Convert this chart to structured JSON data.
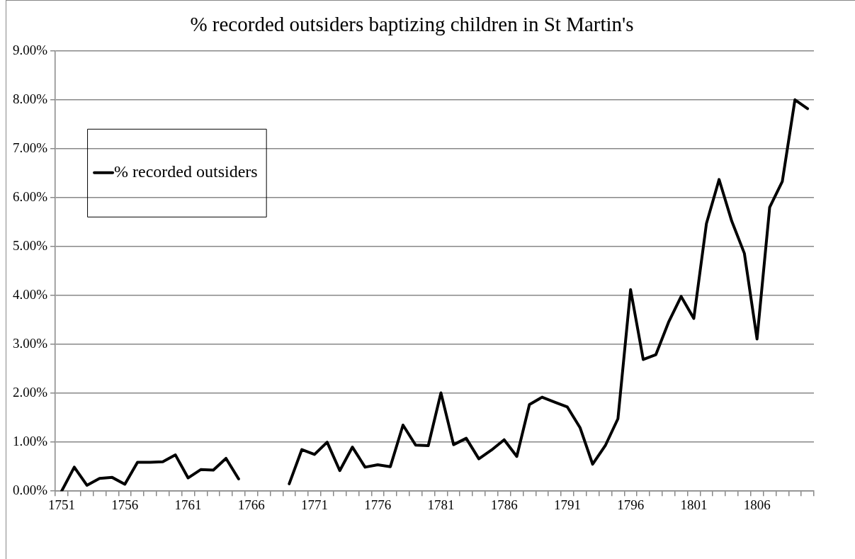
{
  "chart_data": {
    "type": "line",
    "title": "% recorded outsiders baptizing children in St Martin's",
    "categories": [
      "1751",
      null,
      null,
      null,
      null,
      "1756",
      null,
      null,
      null,
      null,
      "1761",
      null,
      null,
      null,
      null,
      "1766",
      null,
      null,
      null,
      null,
      "1771",
      null,
      null,
      null,
      null,
      "1776",
      null,
      null,
      null,
      null,
      "1781",
      null,
      null,
      null,
      null,
      "1786",
      null,
      null,
      null,
      null,
      "1791",
      null,
      null,
      null,
      null,
      "1796",
      null,
      null,
      null,
      null,
      "1801",
      null,
      null,
      null,
      null,
      "1806",
      null,
      null,
      null,
      null
    ],
    "series": [
      {
        "name": "% recorded outsiders",
        "color": "#000000",
        "values": [
          0.0,
          0.49,
          0.12,
          0.26,
          0.28,
          0.14,
          0.59,
          0.59,
          0.6,
          0.74,
          0.27,
          0.44,
          0.43,
          0.67,
          0.25,
          null,
          null,
          null,
          0.15,
          0.85,
          0.75,
          1.0,
          0.42,
          0.9,
          0.49,
          0.54,
          0.5,
          1.35,
          0.94,
          0.93,
          2.01,
          0.95,
          1.08,
          0.66,
          0.84,
          1.05,
          0.71,
          1.77,
          1.92,
          1.82,
          1.72,
          1.3,
          0.55,
          0.93,
          1.48,
          4.12,
          2.69,
          2.79,
          3.45,
          3.98,
          3.53,
          5.47,
          6.37,
          5.52,
          4.86,
          3.11,
          5.8,
          6.33,
          8.0,
          7.82
        ]
      }
    ],
    "ylim": [
      0,
      9
    ],
    "yticks": [
      {
        "value": 0,
        "label": "0.00%"
      },
      {
        "value": 1,
        "label": "1.00%"
      },
      {
        "value": 2,
        "label": "2.00%"
      },
      {
        "value": 3,
        "label": "3.00%"
      },
      {
        "value": 4,
        "label": "4.00%"
      },
      {
        "value": 5,
        "label": "5.00%"
      },
      {
        "value": 6,
        "label": "6.00%"
      },
      {
        "value": 7,
        "label": "7.00%"
      },
      {
        "value": 8,
        "label": "8.00%"
      },
      {
        "value": 9,
        "label": "9.00%"
      }
    ],
    "grid": "y",
    "legend": "top left",
    "marker": "none",
    "line_style": "solid"
  }
}
